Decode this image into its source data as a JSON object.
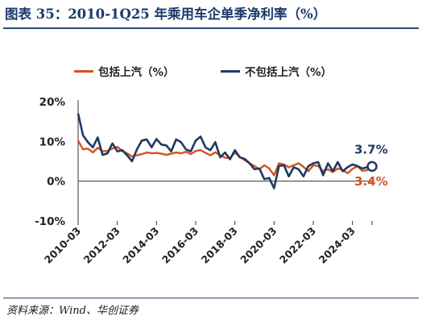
{
  "title": "图表 35：2010-1Q25 年乘用车企单季净利率（%）",
  "source": "资料来源：Wind、华创证券",
  "legend": {
    "series1_label": "包括上汽（%）",
    "series2_label": "不包括上汽（%）"
  },
  "colors": {
    "title": "#1a3a6b",
    "rule": "#2b4a7a",
    "series_incl": "#d4521e",
    "series_excl": "#1f3a63"
  },
  "chart_data": {
    "type": "line",
    "title": "2010-1Q25 年乘用车企单季净利率（%）",
    "xlabel": "",
    "ylabel": "",
    "ylim": [
      -10,
      20
    ],
    "yticks": [
      "20%",
      "10%",
      "0%",
      "-10%"
    ],
    "xtick_labels": [
      "2010-03",
      "2012-03",
      "2014-03",
      "2016-03",
      "2018-03",
      "2020-03",
      "2022-03",
      "2024-03"
    ],
    "grid": false,
    "legend_position": "top",
    "x": [
      "2010-03",
      "2010-06",
      "2010-09",
      "2010-12",
      "2011-03",
      "2011-06",
      "2011-09",
      "2011-12",
      "2012-03",
      "2012-06",
      "2012-09",
      "2012-12",
      "2013-03",
      "2013-06",
      "2013-09",
      "2013-12",
      "2014-03",
      "2014-06",
      "2014-09",
      "2014-12",
      "2015-03",
      "2015-06",
      "2015-09",
      "2015-12",
      "2016-03",
      "2016-06",
      "2016-09",
      "2016-12",
      "2017-03",
      "2017-06",
      "2017-09",
      "2017-12",
      "2018-03",
      "2018-06",
      "2018-09",
      "2018-12",
      "2019-03",
      "2019-06",
      "2019-09",
      "2019-12",
      "2020-03",
      "2020-06",
      "2020-09",
      "2020-12",
      "2021-03",
      "2021-06",
      "2021-09",
      "2021-12",
      "2022-03",
      "2022-06",
      "2022-09",
      "2022-12",
      "2023-03",
      "2023-06",
      "2023-09",
      "2023-12",
      "2024-03",
      "2024-06",
      "2024-09",
      "2024-12",
      "2025-03"
    ],
    "series": [
      {
        "name": "包括上汽（%）",
        "values": [
          10.2,
          8.0,
          8.2,
          7.2,
          8.4,
          7.5,
          7.6,
          8.2,
          8.6,
          7.6,
          7.0,
          6.2,
          6.5,
          6.8,
          7.2,
          7.0,
          7.1,
          6.9,
          6.6,
          6.9,
          7.2,
          7.0,
          7.4,
          6.8,
          7.6,
          7.8,
          7.1,
          6.5,
          7.3,
          6.5,
          5.9,
          5.8,
          7.2,
          6.1,
          5.3,
          4.5,
          3.8,
          3.0,
          4.0,
          3.2,
          1.5,
          4.5,
          4.2,
          3.5,
          4.0,
          4.5,
          3.6,
          2.5,
          4.0,
          3.8,
          2.5,
          3.0,
          2.3,
          3.2,
          2.8,
          2.0,
          3.1,
          3.8,
          2.6,
          2.8,
          3.4
        ]
      },
      {
        "name": "不包括上汽（%）",
        "values": [
          17.0,
          11.5,
          9.8,
          8.5,
          11.0,
          6.6,
          7.0,
          9.5,
          7.5,
          7.8,
          6.5,
          5.0,
          8.0,
          10.2,
          10.5,
          8.5,
          10.6,
          9.2,
          9.0,
          7.5,
          10.5,
          9.8,
          8.0,
          7.5,
          10.2,
          11.2,
          8.5,
          7.8,
          9.8,
          6.0,
          7.2,
          5.5,
          7.8,
          6.0,
          5.6,
          4.5,
          3.0,
          3.2,
          0.5,
          0.8,
          -1.8,
          3.8,
          4.0,
          1.2,
          3.5,
          3.0,
          1.2,
          3.8,
          4.5,
          4.8,
          1.5,
          4.5,
          2.5,
          4.8,
          2.5,
          3.5,
          4.2,
          3.8,
          3.2,
          3.5,
          3.7
        ]
      }
    ],
    "annotations": [
      {
        "text": "3.7%",
        "series": 1,
        "color": "#1f3a63"
      },
      {
        "text": "3.4%",
        "series": 0,
        "color": "#d4521e"
      }
    ]
  }
}
